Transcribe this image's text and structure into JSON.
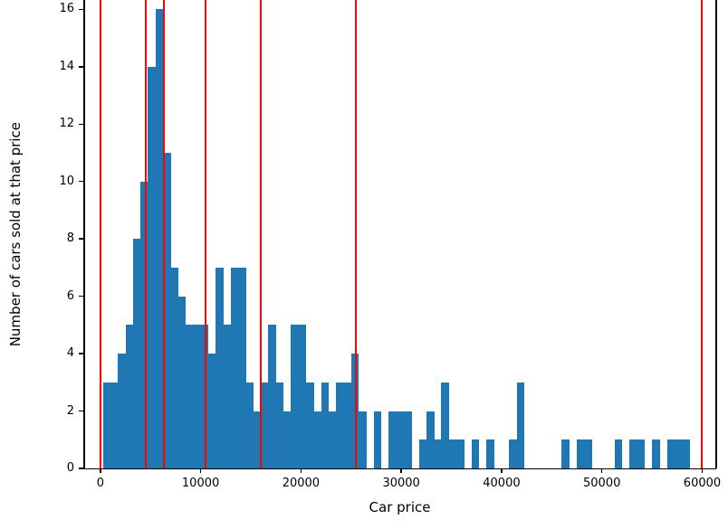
{
  "figure": {
    "background": "#ffffff"
  },
  "chart_data": {
    "type": "bar",
    "subtype": "histogram",
    "title": "",
    "xlabel": "Car price",
    "ylabel": "Number of cars sold at that price",
    "bar_color": "#1f77b4",
    "marker_line_color": "#ff0000",
    "grid": false,
    "legend": "none",
    "xlim": [
      -1700,
      61400
    ],
    "ylim": [
      0,
      16.8
    ],
    "x_ticks": [
      0,
      10000,
      20000,
      30000,
      40000,
      50000,
      60000
    ],
    "x_tick_labels": [
      "0",
      "10000",
      "20000",
      "30000",
      "40000",
      "50000",
      "60000"
    ],
    "y_ticks": [
      0,
      2,
      4,
      6,
      8,
      10,
      12,
      14,
      16
    ],
    "y_tick_labels": [
      "0",
      "2",
      "4",
      "6",
      "8",
      "10",
      "12",
      "14",
      "16"
    ],
    "bin_start": 250,
    "bin_width": 750,
    "counts": [
      3,
      3,
      4,
      5,
      8,
      10,
      14,
      16,
      11,
      7,
      6,
      5,
      5,
      5,
      4,
      7,
      5,
      7,
      7,
      3,
      2,
      3,
      5,
      3,
      2,
      5,
      5,
      3,
      2,
      3,
      2,
      3,
      3,
      4,
      2,
      0,
      2,
      0,
      2,
      2,
      2,
      0,
      1,
      2,
      1,
      3,
      1,
      1,
      0,
      1,
      0,
      1,
      0,
      0,
      1,
      3,
      0,
      0,
      0,
      0,
      0,
      1,
      0,
      1,
      1,
      0,
      0,
      0,
      1,
      0,
      1,
      1,
      0,
      1,
      0,
      1,
      1,
      1,
      0,
      0
    ],
    "red_line_positions": [
      0,
      4500,
      6300,
      10500,
      16000,
      25500,
      60000
    ]
  }
}
